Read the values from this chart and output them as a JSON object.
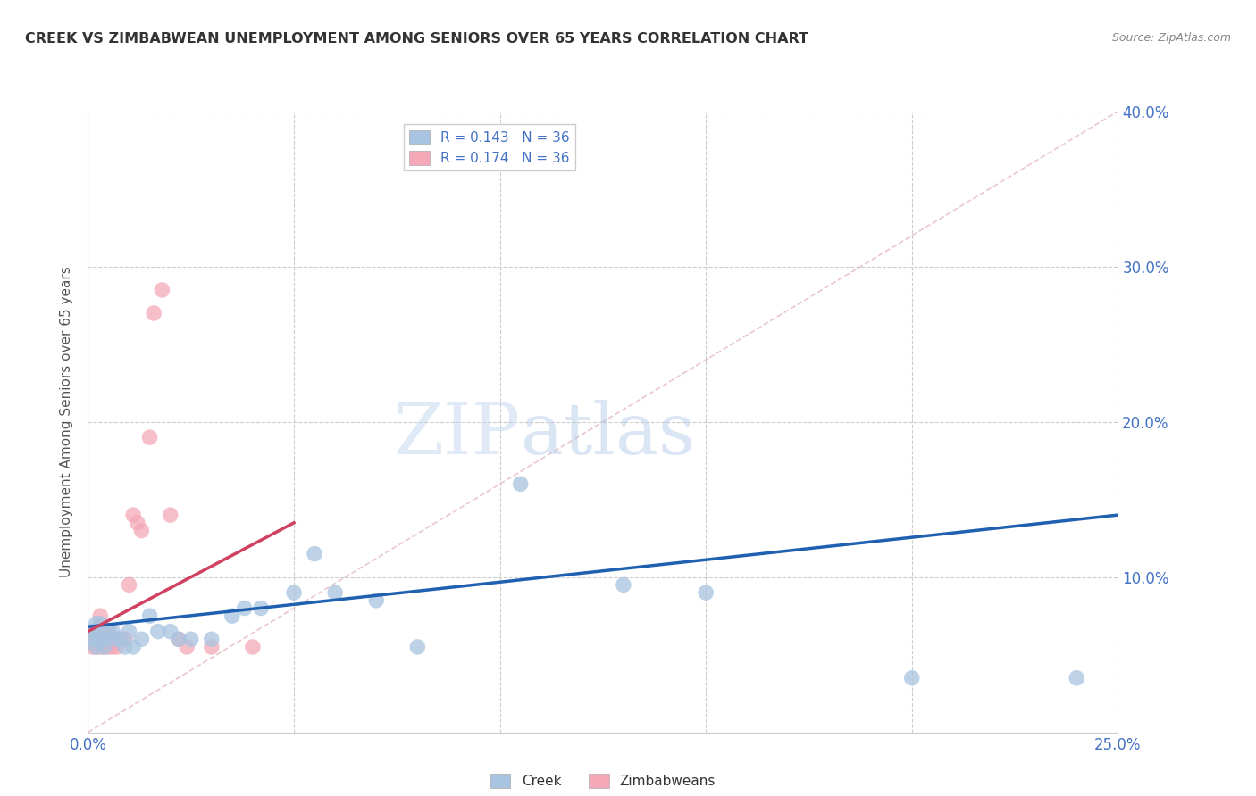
{
  "title": "CREEK VS ZIMBABWEAN UNEMPLOYMENT AMONG SENIORS OVER 65 YEARS CORRELATION CHART",
  "source": "Source: ZipAtlas.com",
  "ylabel": "Unemployment Among Seniors over 65 years",
  "xlim": [
    0.0,
    0.25
  ],
  "ylim": [
    0.0,
    0.4
  ],
  "xticks": [
    0.0,
    0.05,
    0.1,
    0.15,
    0.2,
    0.25
  ],
  "yticks": [
    0.0,
    0.1,
    0.2,
    0.3,
    0.4
  ],
  "xtick_labels": [
    "0.0%",
    "",
    "",
    "",
    "",
    "25.0%"
  ],
  "ytick_labels_right": [
    "",
    "10.0%",
    "20.0%",
    "30.0%",
    "40.0%"
  ],
  "creek_color": "#a8c4e0",
  "creek_edge": "#7aa8d0",
  "zimbabwean_color": "#f4a8b8",
  "zimbabwean_edge": "#d47898",
  "creek_line_color": "#2060b0",
  "zimbabwean_line_color": "#d04060",
  "tick_label_color": "#4472c4",
  "creek_R": 0.143,
  "creek_N": 36,
  "zimbabwean_R": 0.174,
  "zimbabwean_N": 36,
  "watermark_zip": "ZIP",
  "watermark_atlas": "atlas",
  "creek_x": [
    0.001,
    0.001,
    0.002,
    0.002,
    0.002,
    0.003,
    0.003,
    0.004,
    0.004,
    0.005,
    0.006,
    0.007,
    0.008,
    0.009,
    0.01,
    0.011,
    0.013,
    0.015,
    0.017,
    0.02,
    0.022,
    0.025,
    0.03,
    0.035,
    0.038,
    0.042,
    0.05,
    0.055,
    0.06,
    0.07,
    0.08,
    0.105,
    0.13,
    0.15,
    0.2,
    0.24
  ],
  "creek_y": [
    0.065,
    0.06,
    0.055,
    0.07,
    0.06,
    0.07,
    0.06,
    0.06,
    0.055,
    0.065,
    0.065,
    0.06,
    0.06,
    0.055,
    0.065,
    0.055,
    0.06,
    0.075,
    0.065,
    0.065,
    0.06,
    0.06,
    0.06,
    0.075,
    0.08,
    0.08,
    0.09,
    0.115,
    0.09,
    0.085,
    0.055,
    0.16,
    0.095,
    0.09,
    0.035,
    0.035
  ],
  "zimbabwean_x": [
    0.001,
    0.001,
    0.001,
    0.002,
    0.002,
    0.002,
    0.002,
    0.003,
    0.003,
    0.003,
    0.003,
    0.004,
    0.004,
    0.004,
    0.004,
    0.005,
    0.005,
    0.005,
    0.006,
    0.006,
    0.007,
    0.007,
    0.008,
    0.009,
    0.01,
    0.011,
    0.012,
    0.013,
    0.015,
    0.016,
    0.018,
    0.02,
    0.022,
    0.024,
    0.03,
    0.04
  ],
  "zimbabwean_y": [
    0.06,
    0.055,
    0.06,
    0.06,
    0.055,
    0.065,
    0.06,
    0.075,
    0.065,
    0.055,
    0.06,
    0.06,
    0.055,
    0.065,
    0.055,
    0.055,
    0.06,
    0.065,
    0.06,
    0.055,
    0.06,
    0.055,
    0.06,
    0.06,
    0.095,
    0.14,
    0.135,
    0.13,
    0.19,
    0.27,
    0.285,
    0.14,
    0.06,
    0.055,
    0.055,
    0.055
  ],
  "ref_line_x": [
    0.0,
    0.25
  ],
  "ref_line_y": [
    0.0,
    0.4
  ],
  "blue_line_x0": 0.0,
  "blue_line_y0": 0.068,
  "blue_line_x1": 0.25,
  "blue_line_y1": 0.14,
  "pink_line_x0": 0.0,
  "pink_line_y0": 0.065,
  "pink_line_x1": 0.05,
  "pink_line_y1": 0.135
}
